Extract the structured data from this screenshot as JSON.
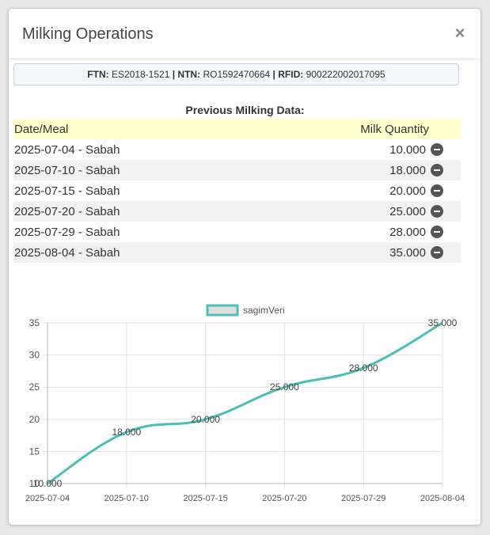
{
  "modal": {
    "title": "Milking Operations",
    "close_label": "×"
  },
  "info": {
    "ftn_label": "FTN:",
    "ftn_value": "ES2018-1521",
    "sep1": "|",
    "ntn_label": "NTN:",
    "ntn_value": "RO1592470664",
    "sep2": "|",
    "rfid_label": "RFID:",
    "rfid_value": "900222002017095"
  },
  "table": {
    "title": "Previous Milking Data:",
    "col_date": "Date/Meal",
    "col_qty": "Milk Quantity",
    "rows": [
      {
        "date": "2025-07-04 - Sabah",
        "qty": "10.000"
      },
      {
        "date": "2025-07-10 - Sabah",
        "qty": "18.000"
      },
      {
        "date": "2025-07-15 - Sabah",
        "qty": "20.000"
      },
      {
        "date": "2025-07-20 - Sabah",
        "qty": "25.000"
      },
      {
        "date": "2025-07-29 - Sabah",
        "qty": "28.000"
      },
      {
        "date": "2025-08-04 - Sabah",
        "qty": "35.000"
      }
    ]
  },
  "chart_data": {
    "type": "line",
    "categories": [
      "2025-07-04",
      "2025-07-10",
      "2025-07-15",
      "2025-07-20",
      "2025-07-29",
      "2025-08-04"
    ],
    "series": [
      {
        "name": "sagimVeri",
        "values": [
          10,
          18,
          20,
          25,
          28,
          35
        ],
        "labels": [
          "10.000",
          "18.000",
          "20.000",
          "25.000",
          "28.000",
          "35.000"
        ],
        "color": "#4bbfb5"
      }
    ],
    "yticks": [
      "35",
      "30",
      "25",
      "20",
      "15",
      "10"
    ],
    "ylim": [
      10,
      35
    ],
    "legend": "top",
    "grid": true
  }
}
